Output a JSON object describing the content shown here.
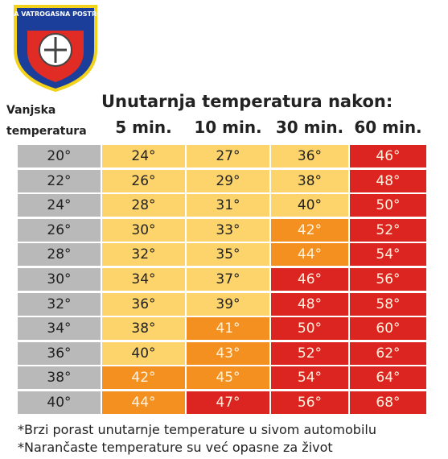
{
  "logo": {
    "text": "JAVNA VATROGASNA POSTROJBA"
  },
  "header": {
    "title": "Unutarnja temperatura nakon:",
    "row_label": [
      "Vanjska",
      "temperatura"
    ],
    "columns": [
      "5 min.",
      "10 min.",
      "30 min.",
      "60 min."
    ]
  },
  "table": {
    "rows": [
      [
        "20°",
        "24°",
        "27°",
        "36°",
        "46°"
      ],
      [
        "22°",
        "26°",
        "29°",
        "38°",
        "48°"
      ],
      [
        "24°",
        "28°",
        "31°",
        "40°",
        "50°"
      ],
      [
        "26°",
        "30°",
        "33°",
        "42°",
        "52°"
      ],
      [
        "28°",
        "32°",
        "35°",
        "44°",
        "54°"
      ],
      [
        "30°",
        "34°",
        "37°",
        "46°",
        "56°"
      ],
      [
        "32°",
        "36°",
        "39°",
        "48°",
        "58°"
      ],
      [
        "34°",
        "38°",
        "41°",
        "50°",
        "60°"
      ],
      [
        "36°",
        "40°",
        "43°",
        "52°",
        "62°"
      ],
      [
        "38°",
        "42°",
        "45°",
        "54°",
        "64°"
      ],
      [
        "40°",
        "44°",
        "47°",
        "56°",
        "68°"
      ]
    ],
    "colors": [
      [
        "#b9b9b9",
        "#fcd46b",
        "#fcd46b",
        "#fcd46b",
        "#dc2420"
      ],
      [
        "#b9b9b9",
        "#fcd46b",
        "#fcd46b",
        "#fcd46b",
        "#dc2420"
      ],
      [
        "#b9b9b9",
        "#fcd46b",
        "#fcd46b",
        "#fcd46b",
        "#dc2420"
      ],
      [
        "#b9b9b9",
        "#fcd46b",
        "#fcd46b",
        "#f3901f",
        "#dc2420"
      ],
      [
        "#b9b9b9",
        "#fcd46b",
        "#fcd46b",
        "#f3901f",
        "#dc2420"
      ],
      [
        "#b9b9b9",
        "#fcd46b",
        "#fcd46b",
        "#dc2420",
        "#dc2420"
      ],
      [
        "#b9b9b9",
        "#fcd46b",
        "#fcd46b",
        "#dc2420",
        "#dc2420"
      ],
      [
        "#b9b9b9",
        "#fcd46b",
        "#f3901f",
        "#dc2420",
        "#dc2420"
      ],
      [
        "#b9b9b9",
        "#fcd46b",
        "#f3901f",
        "#dc2420",
        "#dc2420"
      ],
      [
        "#b9b9b9",
        "#f3901f",
        "#f3901f",
        "#dc2420",
        "#dc2420"
      ],
      [
        "#b9b9b9",
        "#f3901f",
        "#dc2420",
        "#dc2420",
        "#dc2420"
      ]
    ]
  },
  "footnotes": [
    "*Brzi porast unutarnje temperature u sivom automobilu",
    "*Narančaste temperature su već opasne za život"
  ]
}
